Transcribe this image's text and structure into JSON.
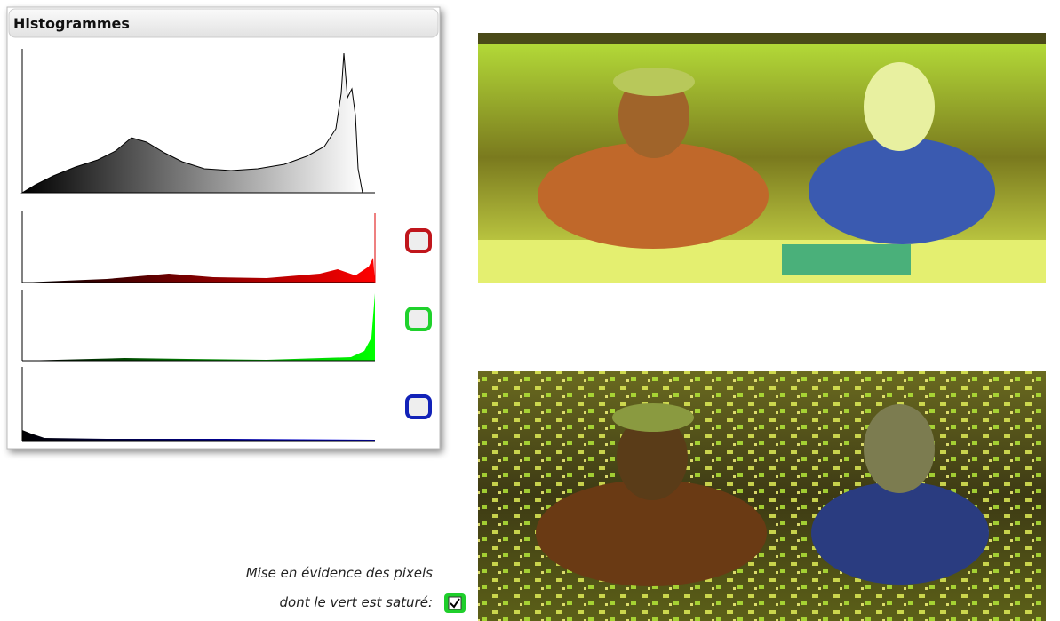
{
  "panel": {
    "title": "Histogrammes"
  },
  "caption": {
    "line1": "Mise en évidence des pixels",
    "line2": "dont le vert est saturé:"
  }
}
